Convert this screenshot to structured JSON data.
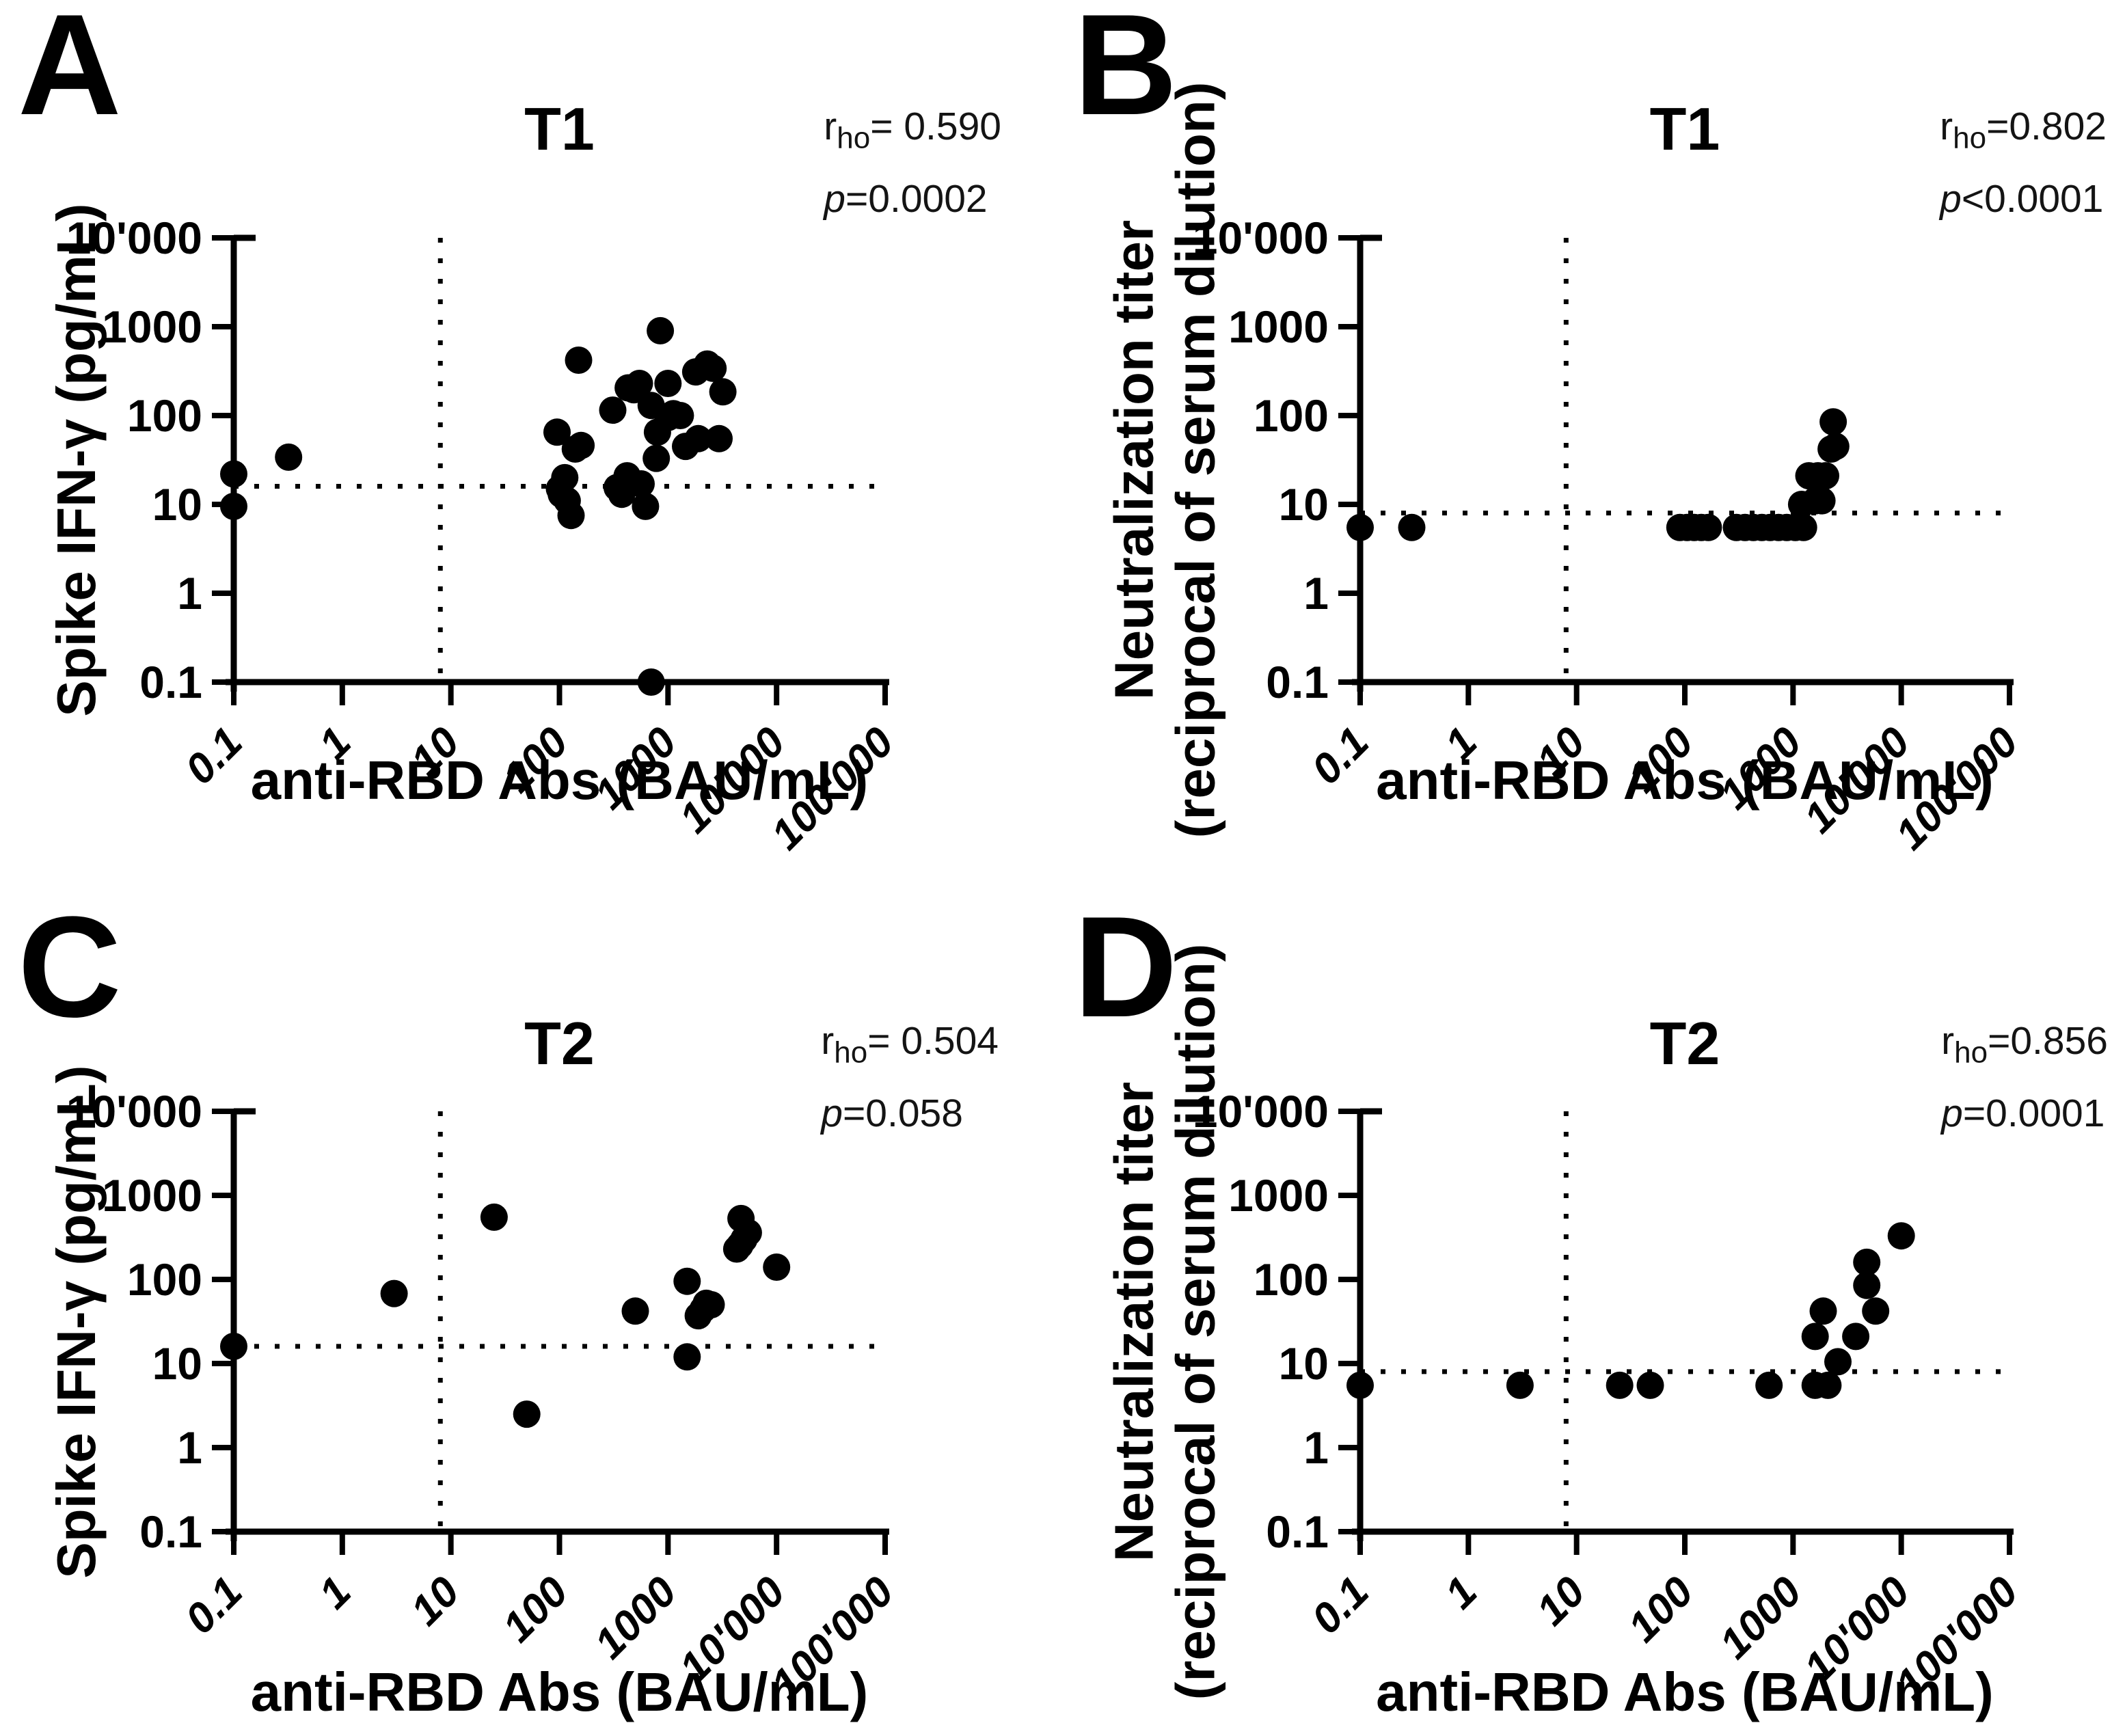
{
  "figure": {
    "background": "#ffffff",
    "marker_color": "#000000",
    "axis_color": "#000000"
  },
  "chart_data": [
    {
      "type": "scatter",
      "panel_label": "A",
      "title": "T1",
      "stats": {
        "r_base": "r",
        "r_sub": "ho",
        "r_rest": "= 0.590",
        "p_base": "p",
        "p_rest": "=0.0002"
      },
      "xlabel": "anti-RBD Abs (BAU/mL)",
      "ylabel_lines": [
        "Spike IFN-γ (pg/mL)"
      ],
      "x_scale": "log",
      "y_scale": "log",
      "xlim": [
        0.1,
        100000
      ],
      "ylim": [
        0.1,
        10000
      ],
      "x_ticks": [
        "0.1",
        "1",
        "10",
        "100",
        "1000",
        "10'000",
        "100'000"
      ],
      "y_ticks": [
        "10'000",
        "1000",
        "100",
        "10",
        "1",
        "0.1"
      ],
      "threshold_x": 8,
      "threshold_y": 16,
      "grid": false,
      "legend": null,
      "points": [
        [
          0.1,
          22
        ],
        [
          0.1,
          9.5
        ],
        [
          0.32,
          34
        ],
        [
          700,
          0.1
        ],
        [
          95,
          65
        ],
        [
          100,
          15
        ],
        [
          104,
          13
        ],
        [
          112,
          20
        ],
        [
          118,
          11
        ],
        [
          128,
          7.5
        ],
        [
          140,
          42
        ],
        [
          158,
          46
        ],
        [
          150,
          420
        ],
        [
          310,
          115
        ],
        [
          340,
          15.5
        ],
        [
          375,
          13
        ],
        [
          420,
          21
        ],
        [
          430,
          205
        ],
        [
          485,
          195
        ],
        [
          545,
          230
        ],
        [
          565,
          17
        ],
        [
          620,
          9.5
        ],
        [
          700,
          130
        ],
        [
          780,
          33
        ],
        [
          800,
          65
        ],
        [
          850,
          900
        ],
        [
          1000,
          230
        ],
        [
          1000,
          95
        ],
        [
          1120,
          105
        ],
        [
          1300,
          100
        ],
        [
          1450,
          45
        ],
        [
          1800,
          310
        ],
        [
          1900,
          55
        ],
        [
          2300,
          380
        ],
        [
          2600,
          340
        ],
        [
          2950,
          55
        ],
        [
          3200,
          185
        ]
      ]
    },
    {
      "type": "scatter",
      "panel_label": "B",
      "title": "T1",
      "stats": {
        "r_base": "r",
        "r_sub": "ho",
        "r_rest": "=0.802",
        "p_base": "p",
        "p_rest": "<0.0001"
      },
      "xlabel": "anti-RBD Abs (BAU/mL)",
      "ylabel_lines": [
        "Neutralization titer",
        "(reciprocal of serum dilution)"
      ],
      "x_scale": "log",
      "y_scale": "log",
      "xlim": [
        0.1,
        100000
      ],
      "ylim": [
        0.1,
        10000
      ],
      "x_ticks": [
        "0.1",
        "1",
        "10",
        "100",
        "1000",
        "10'000",
        "100'000"
      ],
      "y_ticks": [
        "10'000",
        "1000",
        "100",
        "10",
        "1",
        "0.1"
      ],
      "threshold_x": 8,
      "threshold_y": 8,
      "grid": false,
      "legend": null,
      "points": [
        [
          0.1,
          5.5
        ],
        [
          0.3,
          5.5
        ],
        [
          90,
          5.5
        ],
        [
          105,
          5.5
        ],
        [
          122,
          5.5
        ],
        [
          142,
          5.5
        ],
        [
          165,
          5.5
        ],
        [
          300,
          5.5
        ],
        [
          360,
          5.5
        ],
        [
          430,
          5.5
        ],
        [
          515,
          5.5
        ],
        [
          615,
          5.5
        ],
        [
          735,
          5.5
        ],
        [
          875,
          5.5
        ],
        [
          1050,
          5.5
        ],
        [
          1250,
          5.5
        ],
        [
          1200,
          10
        ],
        [
          1600,
          11
        ],
        [
          1850,
          11
        ],
        [
          1400,
          21
        ],
        [
          1700,
          21
        ],
        [
          2000,
          21
        ],
        [
          2250,
          42
        ],
        [
          2480,
          45
        ],
        [
          2350,
          85
        ]
      ]
    },
    {
      "type": "scatter",
      "panel_label": "C",
      "title": "T2",
      "stats": {
        "r_base": "r",
        "r_sub": "ho",
        "r_rest": "= 0.504",
        "p_base": "p",
        "p_rest": "=0.058"
      },
      "xlabel": "anti-RBD Abs (BAU/mL)",
      "ylabel_lines": [
        "Spike IFN-γ (pg/mL)"
      ],
      "x_scale": "log",
      "y_scale": "log",
      "xlim": [
        0.1,
        100000
      ],
      "ylim": [
        0.1,
        10000
      ],
      "x_ticks": [
        "0.1",
        "1",
        "10",
        "100",
        "1000",
        "10'000",
        "100'000"
      ],
      "y_ticks": [
        "10'000",
        "1000",
        "100",
        "10",
        "1",
        "0.1"
      ],
      "threshold_x": 8,
      "threshold_y": 16,
      "grid": false,
      "legend": null,
      "points": [
        [
          0.1,
          16
        ],
        [
          3,
          68
        ],
        [
          25,
          550
        ],
        [
          50,
          2.5
        ],
        [
          500,
          42
        ],
        [
          1500,
          95
        ],
        [
          1500,
          12
        ],
        [
          1900,
          37
        ],
        [
          2100,
          44
        ],
        [
          2250,
          52
        ],
        [
          2500,
          50
        ],
        [
          4300,
          230
        ],
        [
          4600,
          255
        ],
        [
          5000,
          300
        ],
        [
          4700,
          530
        ],
        [
          5500,
          360
        ],
        [
          10000,
          140
        ]
      ]
    },
    {
      "type": "scatter",
      "panel_label": "D",
      "title": "T2",
      "stats": {
        "r_base": "r",
        "r_sub": "ho",
        "r_rest": "=0.856",
        "p_base": "p",
        "p_rest": "=0.0001"
      },
      "xlabel": "anti-RBD Abs (BAU/mL)",
      "ylabel_lines": [
        "Neutralization titer",
        "(reciprocal of serum dilution)"
      ],
      "x_scale": "log",
      "y_scale": "log",
      "xlim": [
        0.1,
        100000
      ],
      "ylim": [
        0.1,
        10000
      ],
      "x_ticks": [
        "0.1",
        "1",
        "10",
        "100",
        "1000",
        "10'000",
        "100'000"
      ],
      "y_ticks": [
        "10'000",
        "1000",
        "100",
        "10",
        "1",
        "0.1"
      ],
      "threshold_x": 8,
      "threshold_y": 8,
      "grid": false,
      "legend": null,
      "points": [
        [
          0.1,
          5.5
        ],
        [
          3,
          5.5
        ],
        [
          25,
          5.5
        ],
        [
          48,
          5.5
        ],
        [
          600,
          5.5
        ],
        [
          1600,
          5.5
        ],
        [
          2100,
          5.5
        ],
        [
          2600,
          10.5
        ],
        [
          1600,
          21
        ],
        [
          3800,
          21
        ],
        [
          1900,
          42
        ],
        [
          5800,
          42
        ],
        [
          4800,
          85
        ],
        [
          4800,
          160
        ],
        [
          10000,
          330
        ]
      ]
    }
  ]
}
